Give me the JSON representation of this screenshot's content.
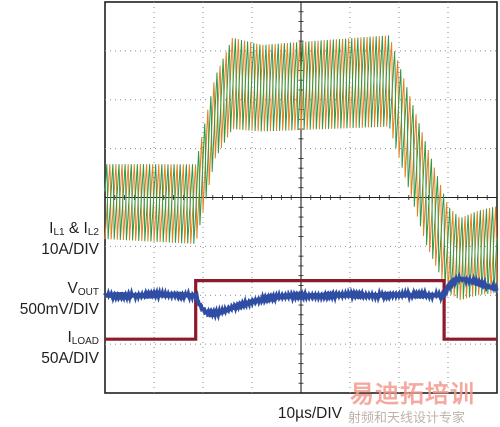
{
  "chart_data": {
    "type": "line",
    "title": "",
    "xlabel": "10µs/DIV",
    "x_div_us": 10,
    "grid": true,
    "divisions": {
      "x": 8,
      "y": 8
    },
    "channels": [
      {
        "name_main": "I",
        "name_sub1": "L1",
        "joiner": " & I",
        "name_sub2": "L2",
        "scale": "10A/DIV",
        "colors": [
          "#e67e22",
          "#2e9a46"
        ],
        "envelope": {
          "t_div": [
            0,
            1.85,
            2.25,
            2.6,
            3.2,
            5.8,
            6.55,
            7.0,
            7.25,
            7.6,
            8.0
          ],
          "low_div": [
            3.15,
            3.05,
            4.8,
            5.4,
            5.35,
            5.45,
            3.05,
            2.05,
            1.9,
            2.0,
            2.05
          ],
          "high_div": [
            4.75,
            4.75,
            6.55,
            7.35,
            7.2,
            7.4,
            5.2,
            3.9,
            3.65,
            3.8,
            3.9
          ]
        }
      },
      {
        "name_main": "V",
        "name_sub1": "OUT",
        "scale": "500mV/DIV",
        "color": "#2f4ea3",
        "baseline_div": 2.0,
        "events": [
          {
            "t_div": 1.85,
            "type": "dip",
            "depth_div": -0.38
          },
          {
            "t_div": 6.92,
            "type": "overshoot",
            "depth_div": 0.33
          }
        ]
      },
      {
        "name_main": "I",
        "name_sub1": "LOAD",
        "scale": "50A/DIV",
        "color": "#8b1a2b",
        "steps": [
          {
            "t_div": 0.0,
            "level_div": 1.1
          },
          {
            "t_div": 1.85,
            "level_div": 2.3
          },
          {
            "t_div": 6.92,
            "level_div": 1.1
          }
        ]
      }
    ]
  },
  "watermark": {
    "main": "易迪拓培训",
    "sub": "射频和天线设计专家"
  }
}
